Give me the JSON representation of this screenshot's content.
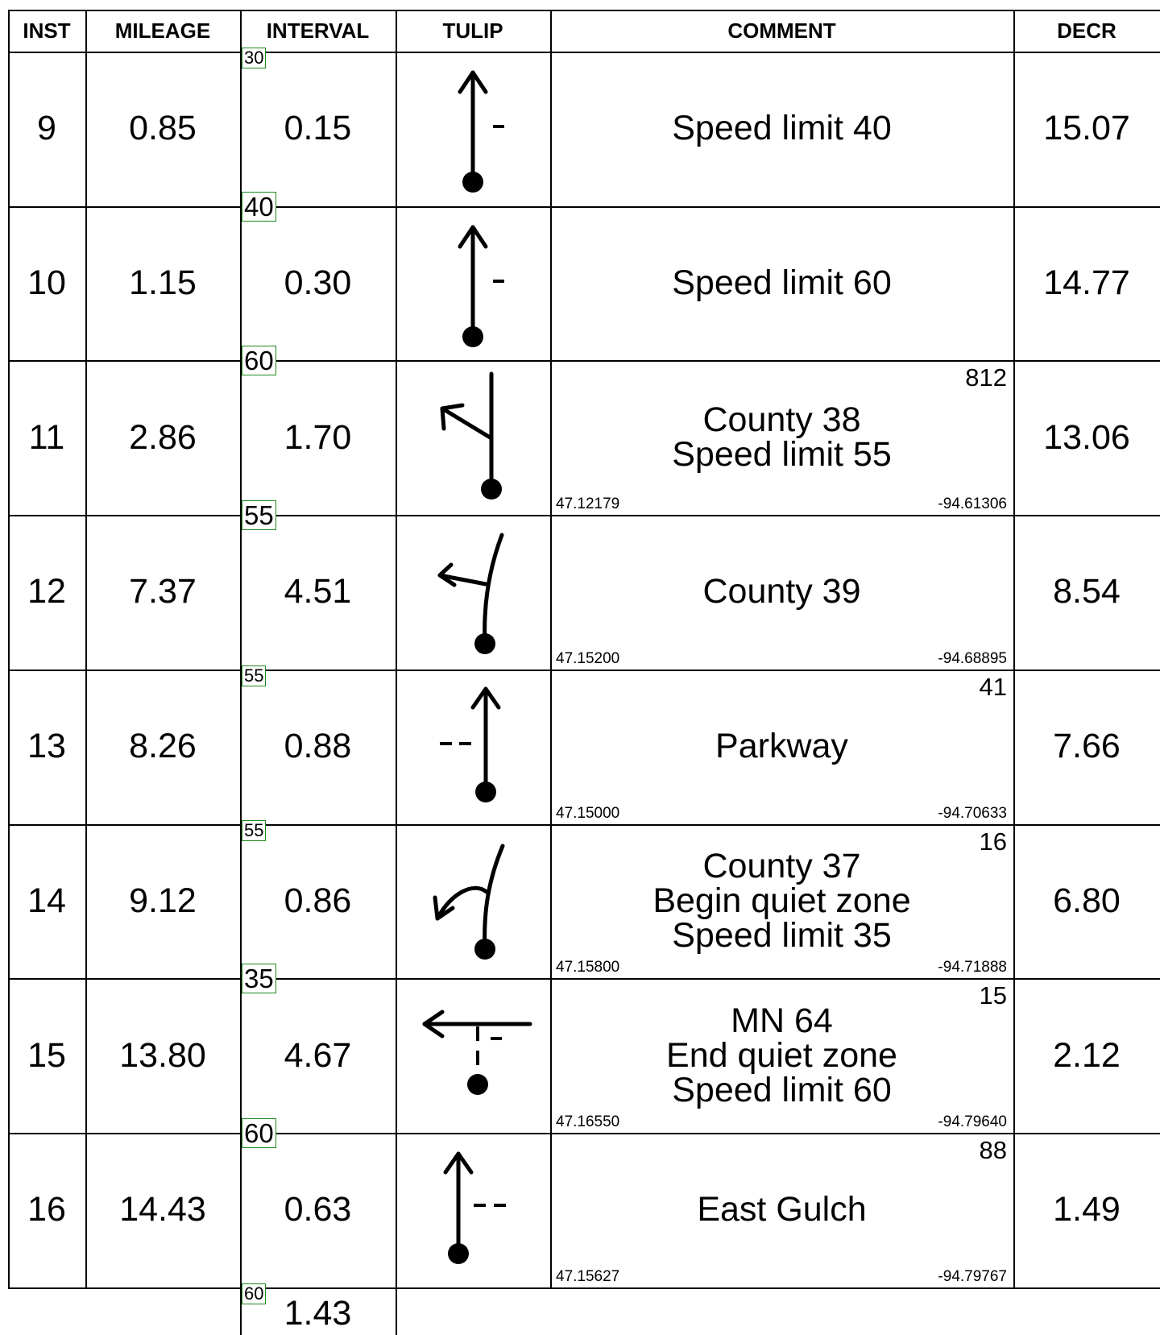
{
  "headers": {
    "inst": "INST",
    "mileage": "MILEAGE",
    "interval": "INTERVAL",
    "tulip": "TULIP",
    "comment": "COMMENT",
    "decr": "DECR"
  },
  "rows": [
    {
      "inst": "9",
      "mileage": "0.85",
      "interval": "0.15",
      "comment": [
        "Speed limit 40"
      ],
      "decr": "15.07",
      "top_number": "",
      "lat": "",
      "lon": "",
      "tulip_icon": "straight-arrow-with-right-dash-icon"
    },
    {
      "inst": "10",
      "mileage": "1.15",
      "interval": "0.30",
      "comment": [
        "Speed limit 60"
      ],
      "decr": "14.77",
      "top_number": "",
      "lat": "",
      "lon": "",
      "tulip_icon": "straight-arrow-with-right-dash-icon"
    },
    {
      "inst": "11",
      "mileage": "2.86",
      "interval": "1.70",
      "comment": [
        "County 38",
        "Speed limit 55"
      ],
      "decr": "13.06",
      "top_number": "812",
      "lat": "47.12179",
      "lon": "-94.61306",
      "tulip_icon": "bear-left-arrow-icon"
    },
    {
      "inst": "12",
      "mileage": "7.37",
      "interval": "4.51",
      "comment": [
        "County 39"
      ],
      "decr": "8.54",
      "top_number": "",
      "lat": "47.15200",
      "lon": "-94.68895",
      "tulip_icon": "curve-left-arrow-icon"
    },
    {
      "inst": "13",
      "mileage": "8.26",
      "interval": "0.88",
      "comment": [
        "Parkway"
      ],
      "decr": "7.66",
      "top_number": "41",
      "lat": "47.15000",
      "lon": "-94.70633",
      "tulip_icon": "straight-arrow-with-left-dashes-icon"
    },
    {
      "inst": "14",
      "mileage": "9.12",
      "interval": "0.86",
      "comment": [
        "County 37",
        "Begin quiet zone",
        "Speed limit 35"
      ],
      "decr": "6.80",
      "top_number": "16",
      "lat": "47.15800",
      "lon": "-94.71888",
      "tulip_icon": "sharp-left-curve-arrow-icon"
    },
    {
      "inst": "15",
      "mileage": "13.80",
      "interval": "4.67",
      "comment": [
        "MN 64",
        "End quiet zone",
        "Speed limit 60"
      ],
      "decr": "2.12",
      "top_number": "15",
      "lat": "47.16550",
      "lon": "-94.79640",
      "tulip_icon": "t-junction-left-turn-arrow-icon"
    },
    {
      "inst": "16",
      "mileage": "14.43",
      "interval": "0.63",
      "comment": [
        "East Gulch"
      ],
      "decr": "1.49",
      "top_number": "88",
      "lat": "47.15627",
      "lon": "-94.79767",
      "tulip_icon": "straight-arrow-with-right-dashes-icon"
    }
  ],
  "speed_limits": [
    "30",
    "40",
    "60",
    "55",
    "55",
    "55",
    "35",
    "60",
    "60"
  ],
  "footer_interval": "1.43",
  "colors": {
    "speed_box_border": "#1a8a1a",
    "grid": "#000000"
  }
}
